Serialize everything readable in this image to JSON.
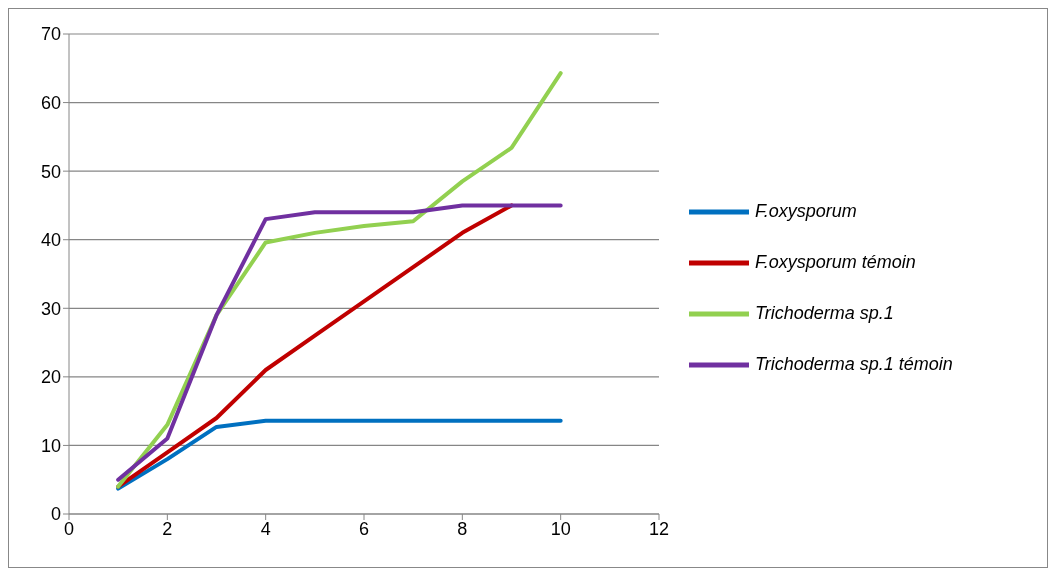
{
  "chart_data": {
    "type": "line",
    "x": [
      1,
      2,
      3,
      4,
      5,
      6,
      7,
      8,
      9,
      10
    ],
    "series": [
      {
        "name": "F.oxysporum",
        "color": "#0070c0",
        "values": [
          3.7,
          8,
          12.7,
          13.6,
          13.6,
          13.6,
          13.6,
          13.6,
          13.6,
          13.6
        ]
      },
      {
        "name": "F.oxysporum témoin",
        "color": "#c00000",
        "values": [
          4,
          9,
          14,
          21,
          26,
          31,
          36,
          41,
          45,
          null
        ]
      },
      {
        "name": "Trichoderma sp.1",
        "color": "#92d050",
        "values": [
          4,
          13,
          29,
          39.6,
          41,
          42,
          42.7,
          48.5,
          53.4,
          64.3
        ]
      },
      {
        "name": "Trichoderma sp.1 témoin",
        "color": "#7030a0",
        "values": [
          5,
          11,
          29,
          43,
          44,
          44,
          44,
          45,
          45,
          45
        ]
      }
    ],
    "xlim": [
      0,
      12
    ],
    "xticks": [
      0,
      2,
      4,
      6,
      8,
      10,
      12
    ],
    "ylim": [
      0,
      70
    ],
    "yticks": [
      0,
      10,
      20,
      30,
      40,
      50,
      60,
      70
    ],
    "grid": "y",
    "legend": "right",
    "marker": "none",
    "line_style": "solid"
  }
}
